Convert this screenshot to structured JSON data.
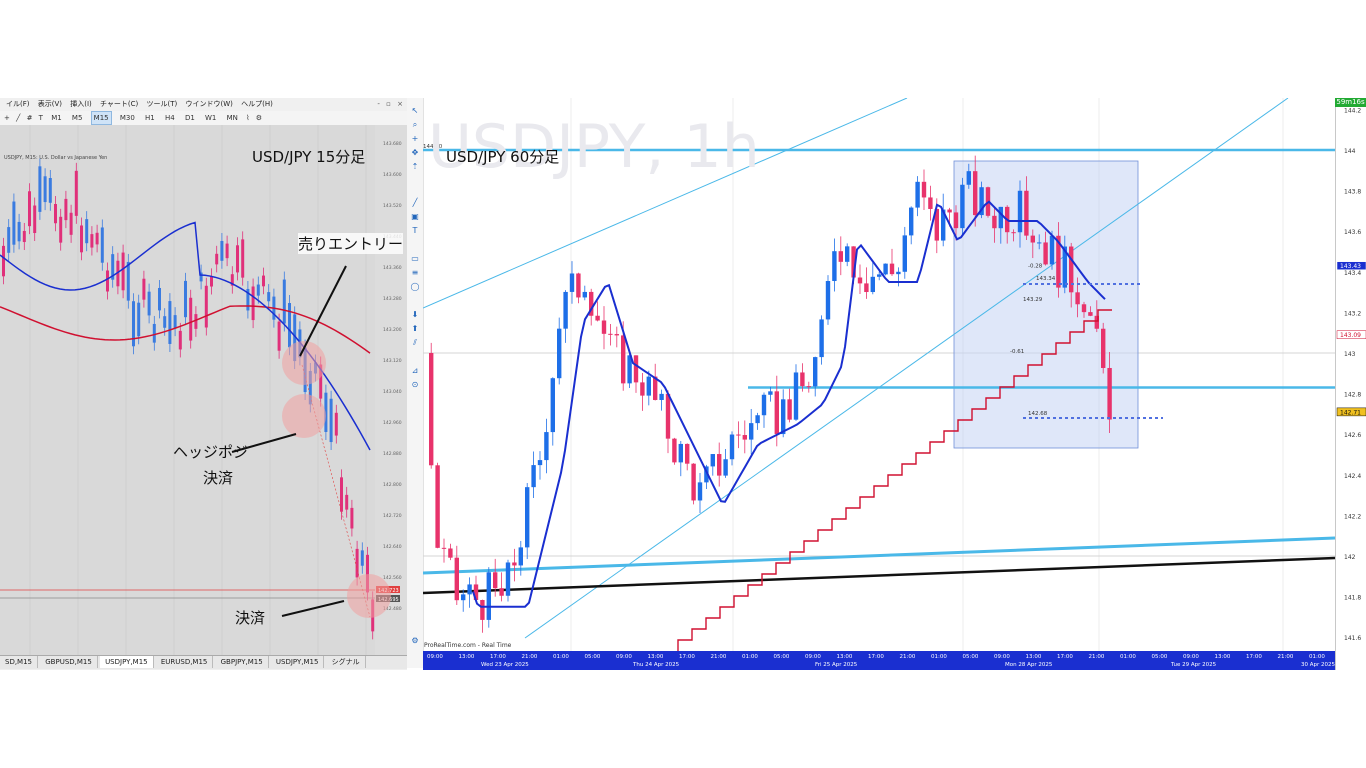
{
  "left_chart": {
    "menu": [
      "イル(F)",
      "表示(V)",
      "挿入(I)",
      "チャート(C)",
      "ツール(T)",
      "ウインドウ(W)",
      "ヘルプ(H)"
    ],
    "window_controls": "- ▫ ×",
    "timeframes": [
      "M1",
      "M5",
      "M15",
      "M30",
      "H1",
      "H4",
      "D1",
      "W1",
      "MN"
    ],
    "active_timeframe": "M15",
    "chart_title": "USDJPY, M15: U.S. Dollar vs Japanese Yen",
    "tabs": [
      "SD,M15",
      "GBPUSD,M15",
      "USDJPY,M15",
      "EURUSD,M15",
      "GBPJPY,M15",
      "USDJPY,M15",
      "シグナル"
    ],
    "active_tab": "USDJPY,M15",
    "price_labels": [
      "142.723",
      "142.695"
    ],
    "price_ticks": [
      "143.680",
      "143.600",
      "143.520",
      "143.440",
      "143.360",
      "143.280",
      "143.200",
      "143.120",
      "143.040",
      "142.960",
      "142.880",
      "142.800",
      "142.720",
      "142.640",
      "142.560",
      "142.480"
    ]
  },
  "annotations": {
    "label_15m": "USD/JPY 15分足",
    "label_60m": "USD/JPY 60分足",
    "sell_entry": "売りエントリー",
    "hedge_close_line1": "ヘッジポジ",
    "hedge_close_line2": "決済",
    "settle": "決済"
  },
  "right_chart": {
    "watermark": "USDJPY, 1h",
    "timer": "59m16s",
    "footer_source": "ProRealTime.com - Real Time",
    "price_ticks": [
      "144.2",
      "144",
      "143.8",
      "143.6",
      "143.4",
      "143.2",
      "143",
      "142.8",
      "142.6",
      "142.4",
      "142.2",
      "142",
      "141.8",
      "141.6"
    ],
    "price_badges": {
      "ma_blue": "143.43",
      "ma_red": "143.09",
      "last": "142.71"
    },
    "inline_labels": [
      "-0.28",
      "-0.61",
      "143.34",
      "143.29",
      "142.68",
      "144.00"
    ],
    "time_ticks": [
      "09:00",
      "13:00",
      "17:00",
      "21:00",
      "01:00",
      "05:00",
      "09:00",
      "13:00",
      "17:00",
      "21:00",
      "01:00",
      "05:00",
      "09:00",
      "13:00",
      "17:00",
      "21:00",
      "01:00",
      "05:00",
      "09:00",
      "13:00",
      "17:00",
      "21:00",
      "01:00",
      "05:00",
      "09:00",
      "13:00",
      "17:00",
      "21:00",
      "01:00"
    ],
    "date_labels": [
      "Wed 23 Apr 2025",
      "Thu 24 Apr 2025",
      "Fri 25 Apr 2025",
      "Mon 28 Apr 2025",
      "Tue 29 Apr 2025",
      "30 Apr 2025"
    ],
    "colors": {
      "bull": "#1e6fe8",
      "bear": "#e8336b",
      "ma_fast": "#1a2fd0",
      "ma_slow": "#d01030",
      "trend": "#4ab8e8",
      "axis": "#1a2fd0"
    }
  }
}
